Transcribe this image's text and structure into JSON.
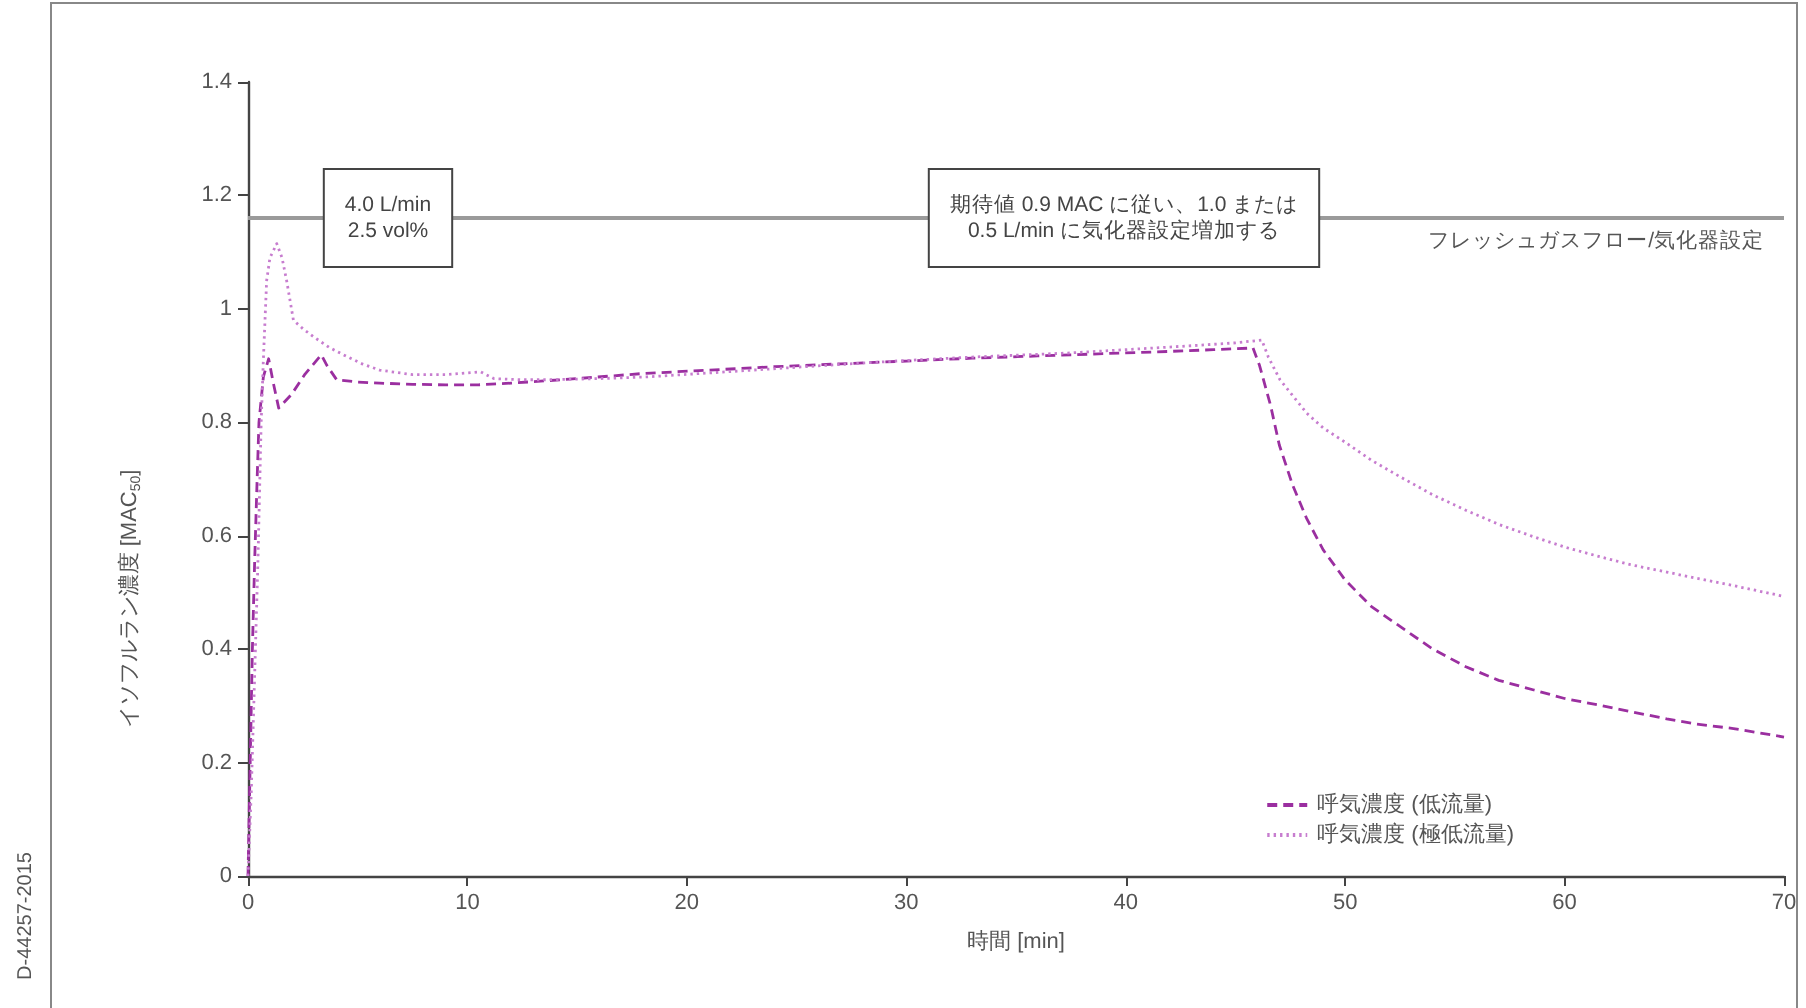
{
  "chart_data": {
    "type": "line",
    "xlabel": "時間 [min]",
    "ylabel": "イソフルラン濃度 [MAC$_{50}$]",
    "xlim": [
      0,
      70
    ],
    "xticks": [
      0,
      10,
      20,
      30,
      40,
      50,
      60,
      70
    ],
    "ylim": [
      0,
      1.4
    ],
    "yticks": [
      0,
      0.2,
      0.4,
      0.6,
      0.8,
      1,
      1.2,
      1.4
    ],
    "grid": false,
    "legend": "bottom right",
    "marker": "none",
    "annotations": [
      "4.0 L/min\n2.5 vol%",
      "期待値 0.9 MAC に従い、1.0 または\n0.5 L/min に気化器設定増加する",
      "D-44257-2015"
    ],
    "ref_lines": [
      {
        "axis": "y",
        "value": 1.16,
        "label": "フレッシュガスフロー/気化器設定",
        "color": "#9a9a9a"
      }
    ],
    "series": [
      {
        "name": "呼気濃度 (低流量)",
        "color": "#9b2fa0",
        "line_style": "dashed",
        "x": [
          0,
          0.1,
          0.2,
          0.3,
          0.4,
          0.5,
          0.7,
          0.94,
          1.15,
          1.4,
          2.0,
          2.6,
          3.34,
          3.6,
          4.04,
          5,
          6,
          7.5,
          9,
          10.5,
          12,
          15,
          18,
          21,
          24,
          27,
          30,
          33,
          36,
          39,
          42,
          44,
          45.8,
          46.1,
          46.6,
          47.0,
          47.6,
          48.25,
          49,
          50,
          51.2,
          52.5,
          54,
          55.5,
          57,
          58.6,
          60,
          61.6,
          63,
          64.65,
          66,
          67.7,
          70
        ],
        "values": [
          0,
          0.2,
          0.4,
          0.55,
          0.68,
          0.8,
          0.88,
          0.912,
          0.87,
          0.825,
          0.85,
          0.885,
          0.919,
          0.9,
          0.875,
          0.871,
          0.869,
          0.867,
          0.866,
          0.866,
          0.869,
          0.877,
          0.886,
          0.892,
          0.898,
          0.903,
          0.908,
          0.913,
          0.917,
          0.921,
          0.925,
          0.928,
          0.931,
          0.9,
          0.83,
          0.76,
          0.69,
          0.63,
          0.575,
          0.522,
          0.475,
          0.44,
          0.4,
          0.369,
          0.345,
          0.328,
          0.313,
          0.301,
          0.29,
          0.277,
          0.268,
          0.26,
          0.245
        ]
      },
      {
        "name": "呼気濃度 (極低流量)",
        "color": "#c77dcf",
        "line_style": "dotted",
        "x": [
          0,
          0.15,
          0.3,
          0.45,
          0.6,
          0.7,
          0.85,
          1.0,
          1.31,
          1.55,
          1.76,
          2.07,
          2.5,
          2.98,
          3.7,
          4.5,
          5.2,
          6,
          7.5,
          9,
          10.6,
          11.2,
          12.5,
          13.6,
          16,
          18.2,
          21,
          24.2,
          27,
          30,
          33,
          37.3,
          40,
          43,
          45,
          46.2,
          46.5,
          47.03,
          48.25,
          49,
          50.07,
          51.2,
          52.5,
          54,
          55.5,
          57,
          58.6,
          60,
          61.6,
          63,
          64.65,
          66,
          67.7,
          70
        ],
        "values": [
          0,
          0.15,
          0.35,
          0.55,
          0.8,
          0.91,
          1.05,
          1.09,
          1.115,
          1.09,
          1.05,
          0.98,
          0.965,
          0.951,
          0.932,
          0.916,
          0.903,
          0.892,
          0.884,
          0.884,
          0.889,
          0.877,
          0.875,
          0.875,
          0.877,
          0.88,
          0.887,
          0.895,
          0.902,
          0.909,
          0.915,
          0.922,
          0.928,
          0.935,
          0.94,
          0.945,
          0.915,
          0.875,
          0.816,
          0.79,
          0.763,
          0.733,
          0.704,
          0.672,
          0.645,
          0.62,
          0.598,
          0.58,
          0.563,
          0.549,
          0.536,
          0.525,
          0.512,
          0.493
        ]
      }
    ]
  }
}
